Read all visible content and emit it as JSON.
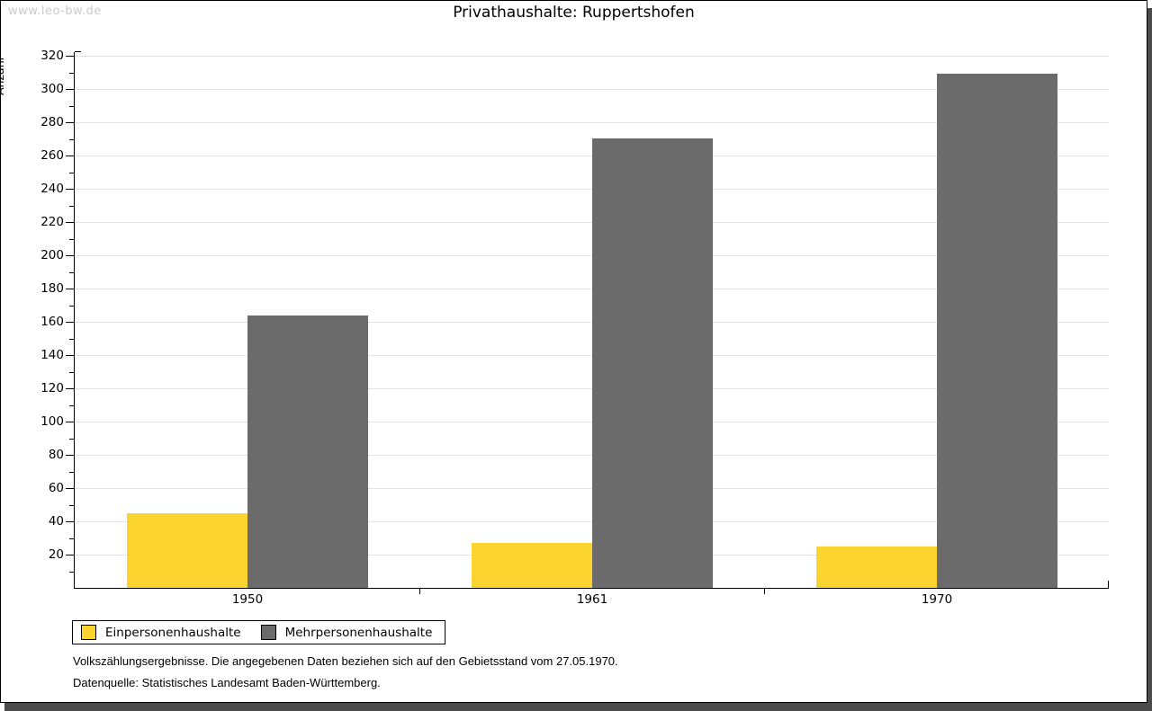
{
  "watermark": "www.leo-bw.de",
  "header": {
    "title": "Privathaushalte: Ruppertshofen"
  },
  "chart_data": {
    "type": "bar",
    "title": "Privathaushalte: Ruppertshofen",
    "categories": [
      "1950",
      "1961",
      "1970"
    ],
    "series": [
      {
        "name": "Einpersonenhaushalte",
        "color": "#fbd32f",
        "values": [
          45,
          27,
          25
        ]
      },
      {
        "name": "Mehrpersonenhaushalte",
        "color": "#6b6b6b",
        "values": [
          164,
          270,
          309
        ]
      }
    ],
    "xlabel": "",
    "ylabel": "Anzahl",
    "ylim": [
      0,
      320
    ],
    "ytick_step": 20,
    "yminor_step": 10,
    "grid": true,
    "grid_color": "#e2e2e2",
    "axis_color": "#000000",
    "legend_position": "bottom-left"
  },
  "footer": {
    "line1": "Volkszählungsergebnisse. Die angegebenen Daten beziehen sich auf den Gebietsstand vom 27.05.1970.",
    "line2": "Datenquelle: Statistisches Landesamt Baden-Württemberg."
  }
}
